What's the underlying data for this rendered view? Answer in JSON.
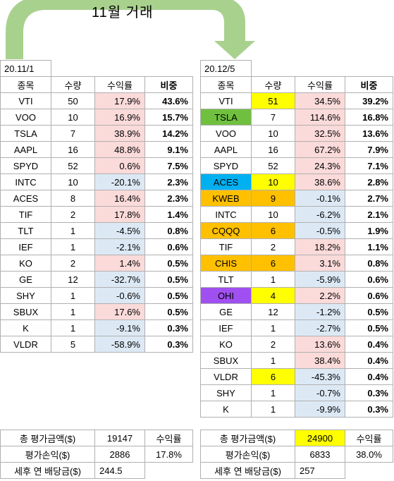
{
  "colors": {
    "arrow": "#a9d18e",
    "positive": "#fbdada",
    "negative": "#dce9f5",
    "yellow": "#ffff00",
    "green": "#70c040",
    "blue": "#00b0f0",
    "orange": "#ffc000",
    "purple": "#a050f0"
  },
  "title": "11월 거래",
  "headers": [
    "종목",
    "수량",
    "수익률",
    "비중"
  ],
  "left": {
    "date": "20.11/1",
    "rows": [
      {
        "ticker": "VTI",
        "qty": "50",
        "ret": "17.9%",
        "weight": "43.6%",
        "ret_sign": "pos"
      },
      {
        "ticker": "VOO",
        "qty": "10",
        "ret": "16.9%",
        "weight": "15.7%",
        "ret_sign": "pos"
      },
      {
        "ticker": "TSLA",
        "qty": "7",
        "ret": "38.9%",
        "weight": "14.2%",
        "ret_sign": "pos"
      },
      {
        "ticker": "AAPL",
        "qty": "16",
        "ret": "48.8%",
        "weight": "9.1%",
        "ret_sign": "pos"
      },
      {
        "ticker": "SPYD",
        "qty": "52",
        "ret": "0.6%",
        "weight": "7.5%",
        "ret_sign": "pos"
      },
      {
        "ticker": "INTC",
        "qty": "10",
        "ret": "-20.1%",
        "weight": "2.3%",
        "ret_sign": "neg"
      },
      {
        "ticker": "ACES",
        "qty": "8",
        "ret": "16.4%",
        "weight": "2.3%",
        "ret_sign": "pos"
      },
      {
        "ticker": "TIF",
        "qty": "2",
        "ret": "17.8%",
        "weight": "1.4%",
        "ret_sign": "pos"
      },
      {
        "ticker": "TLT",
        "qty": "1",
        "ret": "-4.5%",
        "weight": "0.8%",
        "ret_sign": "neg"
      },
      {
        "ticker": "IEF",
        "qty": "1",
        "ret": "-2.1%",
        "weight": "0.6%",
        "ret_sign": "neg"
      },
      {
        "ticker": "KO",
        "qty": "2",
        "ret": "1.4%",
        "weight": "0.5%",
        "ret_sign": "pos"
      },
      {
        "ticker": "GE",
        "qty": "12",
        "ret": "-32.7%",
        "weight": "0.5%",
        "ret_sign": "neg"
      },
      {
        "ticker": "SHY",
        "qty": "1",
        "ret": "-0.6%",
        "weight": "0.5%",
        "ret_sign": "neg"
      },
      {
        "ticker": "SBUX",
        "qty": "1",
        "ret": "17.6%",
        "weight": "0.5%",
        "ret_sign": "pos"
      },
      {
        "ticker": "K",
        "qty": "1",
        "ret": "-9.1%",
        "weight": "0.3%",
        "ret_sign": "neg"
      },
      {
        "ticker": "VLDR",
        "qty": "5",
        "ret": "-58.9%",
        "weight": "0.3%",
        "ret_sign": "neg"
      }
    ],
    "summary": {
      "total_label": "총 평가금액($)",
      "total_value": "19147",
      "return_label": "수익률",
      "pnl_label": "평가손익($)",
      "pnl_value": "2886",
      "return_value": "17.8%",
      "dividend_label": "세후 연 배당금($)",
      "dividend_value": "244.5"
    }
  },
  "right": {
    "date": "20.12/5",
    "rows": [
      {
        "ticker": "VTI",
        "qty": "51",
        "ret": "34.5%",
        "weight": "39.2%",
        "ret_sign": "pos",
        "ticker_hl": "",
        "qty_hl": "yellow"
      },
      {
        "ticker": "TSLA",
        "qty": "7",
        "ret": "114.6%",
        "weight": "16.8%",
        "ret_sign": "pos",
        "ticker_hl": "green",
        "qty_hl": ""
      },
      {
        "ticker": "VOO",
        "qty": "10",
        "ret": "32.5%",
        "weight": "13.6%",
        "ret_sign": "pos",
        "ticker_hl": "",
        "qty_hl": ""
      },
      {
        "ticker": "AAPL",
        "qty": "16",
        "ret": "67.2%",
        "weight": "7.9%",
        "ret_sign": "pos",
        "ticker_hl": "",
        "qty_hl": ""
      },
      {
        "ticker": "SPYD",
        "qty": "52",
        "ret": "24.3%",
        "weight": "7.1%",
        "ret_sign": "pos",
        "ticker_hl": "",
        "qty_hl": ""
      },
      {
        "ticker": "ACES",
        "qty": "10",
        "ret": "38.6%",
        "weight": "2.8%",
        "ret_sign": "pos",
        "ticker_hl": "blue",
        "qty_hl": "yellow"
      },
      {
        "ticker": "KWEB",
        "qty": "9",
        "ret": "-0.1%",
        "weight": "2.7%",
        "ret_sign": "neg",
        "ticker_hl": "orange",
        "qty_hl": "orange"
      },
      {
        "ticker": "INTC",
        "qty": "10",
        "ret": "-6.2%",
        "weight": "2.1%",
        "ret_sign": "neg",
        "ticker_hl": "",
        "qty_hl": ""
      },
      {
        "ticker": "CQQQ",
        "qty": "6",
        "ret": "-0.5%",
        "weight": "1.9%",
        "ret_sign": "neg",
        "ticker_hl": "orange",
        "qty_hl": "orange"
      },
      {
        "ticker": "TIF",
        "qty": "2",
        "ret": "18.2%",
        "weight": "1.1%",
        "ret_sign": "pos",
        "ticker_hl": "",
        "qty_hl": ""
      },
      {
        "ticker": "CHIS",
        "qty": "6",
        "ret": "3.1%",
        "weight": "0.8%",
        "ret_sign": "pos",
        "ticker_hl": "orange",
        "qty_hl": "orange"
      },
      {
        "ticker": "TLT",
        "qty": "1",
        "ret": "-5.9%",
        "weight": "0.6%",
        "ret_sign": "neg",
        "ticker_hl": "",
        "qty_hl": ""
      },
      {
        "ticker": "OHI",
        "qty": "4",
        "ret": "2.2%",
        "weight": "0.6%",
        "ret_sign": "pos",
        "ticker_hl": "purple",
        "qty_hl": "yellow"
      },
      {
        "ticker": "GE",
        "qty": "12",
        "ret": "-1.2%",
        "weight": "0.5%",
        "ret_sign": "neg",
        "ticker_hl": "",
        "qty_hl": ""
      },
      {
        "ticker": "IEF",
        "qty": "1",
        "ret": "-2.7%",
        "weight": "0.5%",
        "ret_sign": "neg",
        "ticker_hl": "",
        "qty_hl": ""
      },
      {
        "ticker": "KO",
        "qty": "2",
        "ret": "13.6%",
        "weight": "0.4%",
        "ret_sign": "pos",
        "ticker_hl": "",
        "qty_hl": ""
      },
      {
        "ticker": "SBUX",
        "qty": "1",
        "ret": "38.4%",
        "weight": "0.4%",
        "ret_sign": "pos",
        "ticker_hl": "",
        "qty_hl": ""
      },
      {
        "ticker": "VLDR",
        "qty": "6",
        "ret": "-45.3%",
        "weight": "0.4%",
        "ret_sign": "neg",
        "ticker_hl": "",
        "qty_hl": "yellow"
      },
      {
        "ticker": "SHY",
        "qty": "1",
        "ret": "-0.7%",
        "weight": "0.3%",
        "ret_sign": "neg",
        "ticker_hl": "",
        "qty_hl": ""
      },
      {
        "ticker": "K",
        "qty": "1",
        "ret": "-9.9%",
        "weight": "0.3%",
        "ret_sign": "neg",
        "ticker_hl": "",
        "qty_hl": ""
      }
    ],
    "summary": {
      "total_label": "총 평가금액($)",
      "total_value": "24900",
      "return_label": "수익률",
      "pnl_label": "평가손익($)",
      "pnl_value": "6833",
      "return_value": "38.0%",
      "dividend_label": "세후 연 배당금($)",
      "dividend_value": "257"
    }
  }
}
